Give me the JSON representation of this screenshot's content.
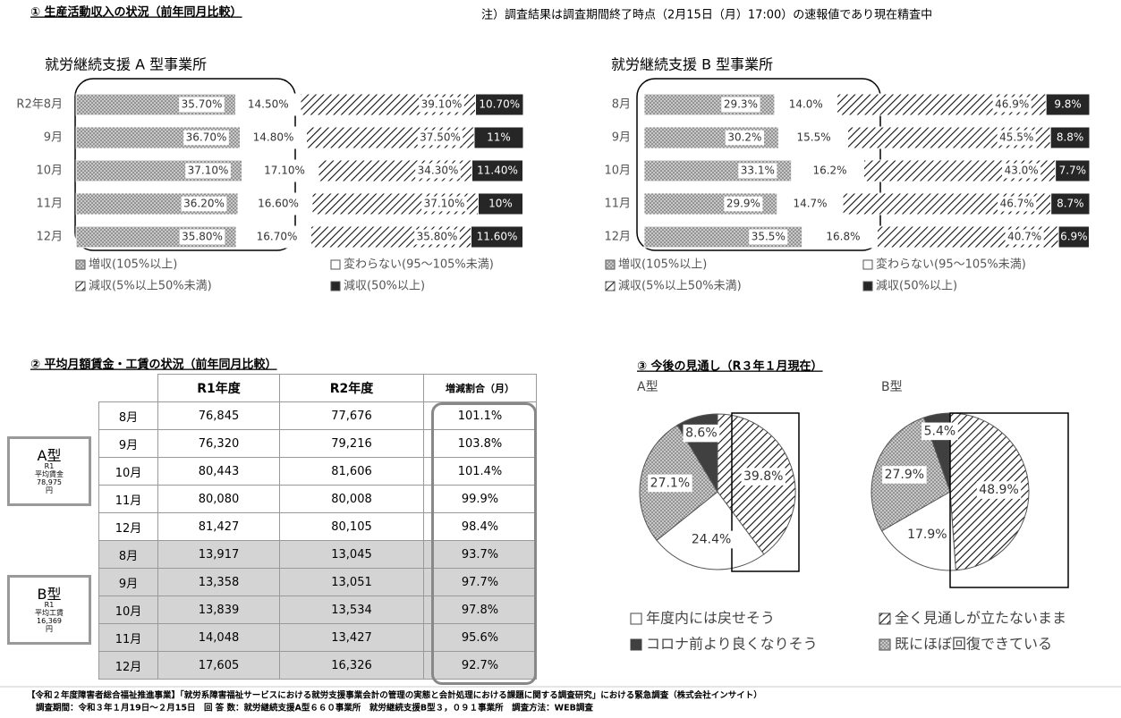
{
  "header": {
    "title": "① 生産活動収入の状況（前年同月比較）",
    "note": "注）調査結果は調査期間終了時点（2月15日（月）17:00）の速報値であり現在精査中"
  },
  "chart_data": [
    {
      "type": "bar",
      "orientation": "horizontal",
      "stacked": true,
      "title": "就労継続支援 A 型事業所",
      "categories": [
        "R2年8月",
        "9月",
        "10月",
        "11月",
        "12月"
      ],
      "xlim": [
        0,
        100
      ],
      "series": [
        {
          "name": "増収(105%以上)",
          "color": "#c8c8c8",
          "pattern": "dots",
          "values": [
            35.7,
            36.7,
            37.1,
            36.2,
            35.8
          ],
          "value_labels": [
            "35.70%",
            "36.70%",
            "37.10%",
            "36.20%",
            "35.80%"
          ]
        },
        {
          "name": "変わらない(95～105%未満)",
          "color": "#ffffff",
          "pattern": "none",
          "values": [
            14.5,
            14.8,
            17.1,
            16.6,
            16.7
          ],
          "value_labels": [
            "14.50%",
            "14.80%",
            "17.10%",
            "16.60%",
            "16.70%"
          ]
        },
        {
          "name": "減収(5%以上50%未満)",
          "color": "#ffffff",
          "pattern": "hatch",
          "values": [
            39.1,
            37.5,
            34.3,
            37.1,
            35.8
          ],
          "value_labels": [
            "39.10%",
            "37.50%",
            "34.30%",
            "37.10%",
            "35.80%"
          ]
        },
        {
          "name": "減収(50%以上)",
          "color": "#262626",
          "pattern": "solid",
          "values": [
            10.7,
            11,
            11.4,
            10,
            11.6
          ],
          "value_labels": [
            "10.70%",
            "11%",
            "11.40%",
            "10%",
            "11.60%"
          ]
        }
      ]
    },
    {
      "type": "bar",
      "orientation": "horizontal",
      "stacked": true,
      "title": "就労継続支援 B 型事業所",
      "categories": [
        "8月",
        "9月",
        "10月",
        "11月",
        "12月"
      ],
      "xlim": [
        0,
        100
      ],
      "series": [
        {
          "name": "増収(105%以上)",
          "color": "#c8c8c8",
          "pattern": "dots",
          "values": [
            29.3,
            30.2,
            33.1,
            29.9,
            35.5
          ],
          "value_labels": [
            "29.3%",
            "30.2%",
            "33.1%",
            "29.9%",
            "35.5%"
          ]
        },
        {
          "name": "変わらない(95～105%未満)",
          "color": "#ffffff",
          "pattern": "none",
          "values": [
            14.0,
            15.5,
            16.2,
            14.7,
            16.8
          ],
          "value_labels": [
            "14.0%",
            "15.5%",
            "16.2%",
            "14.7%",
            "16.8%"
          ]
        },
        {
          "name": "減収(5%以上50%未満)",
          "color": "#ffffff",
          "pattern": "hatch",
          "values": [
            46.9,
            45.5,
            43.0,
            46.7,
            40.7
          ],
          "value_labels": [
            "46.9%",
            "45.5%",
            "43.0%",
            "46.7%",
            "40.7%"
          ]
        },
        {
          "name": "減収(50%以上)",
          "color": "#262626",
          "pattern": "solid",
          "values": [
            9.8,
            8.8,
            7.7,
            8.7,
            6.9
          ],
          "value_labels": [
            "9.8%",
            "8.8%",
            "7.7%",
            "8.7%",
            "6.9%"
          ]
        }
      ]
    },
    {
      "type": "pie",
      "title": "③ 今後の見通し（R３年１月現在）",
      "categories": [
        "全く見通しが立たないまま",
        "年度内には戻せそう",
        "既にほぼ回復できている",
        "コロナ前より良くなりそう"
      ],
      "colors": [
        "#ffffff",
        "#ffffff",
        "#a6a6a6",
        "#404040"
      ],
      "patterns": [
        "hatch",
        "none",
        "dots",
        "solid"
      ],
      "pies": [
        {
          "name": "A型",
          "values": [
            39.8,
            24.4,
            27.1,
            8.6
          ],
          "value_labels": [
            "39.8%",
            "24.4%",
            "27.1%",
            "8.6%"
          ]
        },
        {
          "name": "B型",
          "values": [
            48.9,
            17.9,
            27.9,
            5.4
          ],
          "value_labels": [
            "48.9%",
            "17.9%",
            "27.9%",
            "5.4%"
          ]
        }
      ]
    }
  ],
  "table": {
    "title": "② 平均月額賃金・工賃の状況（前年同月比較）",
    "columns": [
      "R1年度",
      "R2年度",
      "増減割合（月）"
    ],
    "groups": [
      {
        "name": "A型",
        "note": [
          "R1",
          "平均賃金",
          "78,975",
          "円"
        ],
        "rows": [
          [
            "8月",
            "76,845",
            "77,676",
            "101.1%"
          ],
          [
            "9月",
            "76,320",
            "79,216",
            "103.8%"
          ],
          [
            "10月",
            "80,443",
            "81,606",
            "101.4%"
          ],
          [
            "11月",
            "80,080",
            "80,008",
            "99.9%"
          ],
          [
            "12月",
            "81,427",
            "80,105",
            "98.4%"
          ]
        ]
      },
      {
        "name": "B型",
        "note": [
          "R1",
          "平均工賃",
          "16,369",
          "円"
        ],
        "rows": [
          [
            "8月",
            "13,917",
            "13,045",
            "93.7%"
          ],
          [
            "9月",
            "13,358",
            "13,051",
            "97.7%"
          ],
          [
            "10月",
            "13,839",
            "13,534",
            "97.8%"
          ],
          [
            "11月",
            "14,048",
            "13,427",
            "95.6%"
          ],
          [
            "12月",
            "17,605",
            "16,326",
            "92.7%"
          ]
        ]
      }
    ]
  },
  "footer": {
    "line1": "【令和２年度障害者総合福祉推進事業】「就労系障害福祉サービスにおける就労支援事業会計の管理の実態と会計処理における課題に関する調査研究」における緊急調査（株式会社インサイト）",
    "line2": "調査期間：令和３年１月19日～２月15日　回 答 数：就労継続支援A型６６０事業所　就労継続支援B型３，０９１事業所　調査方法：WEB調査"
  }
}
